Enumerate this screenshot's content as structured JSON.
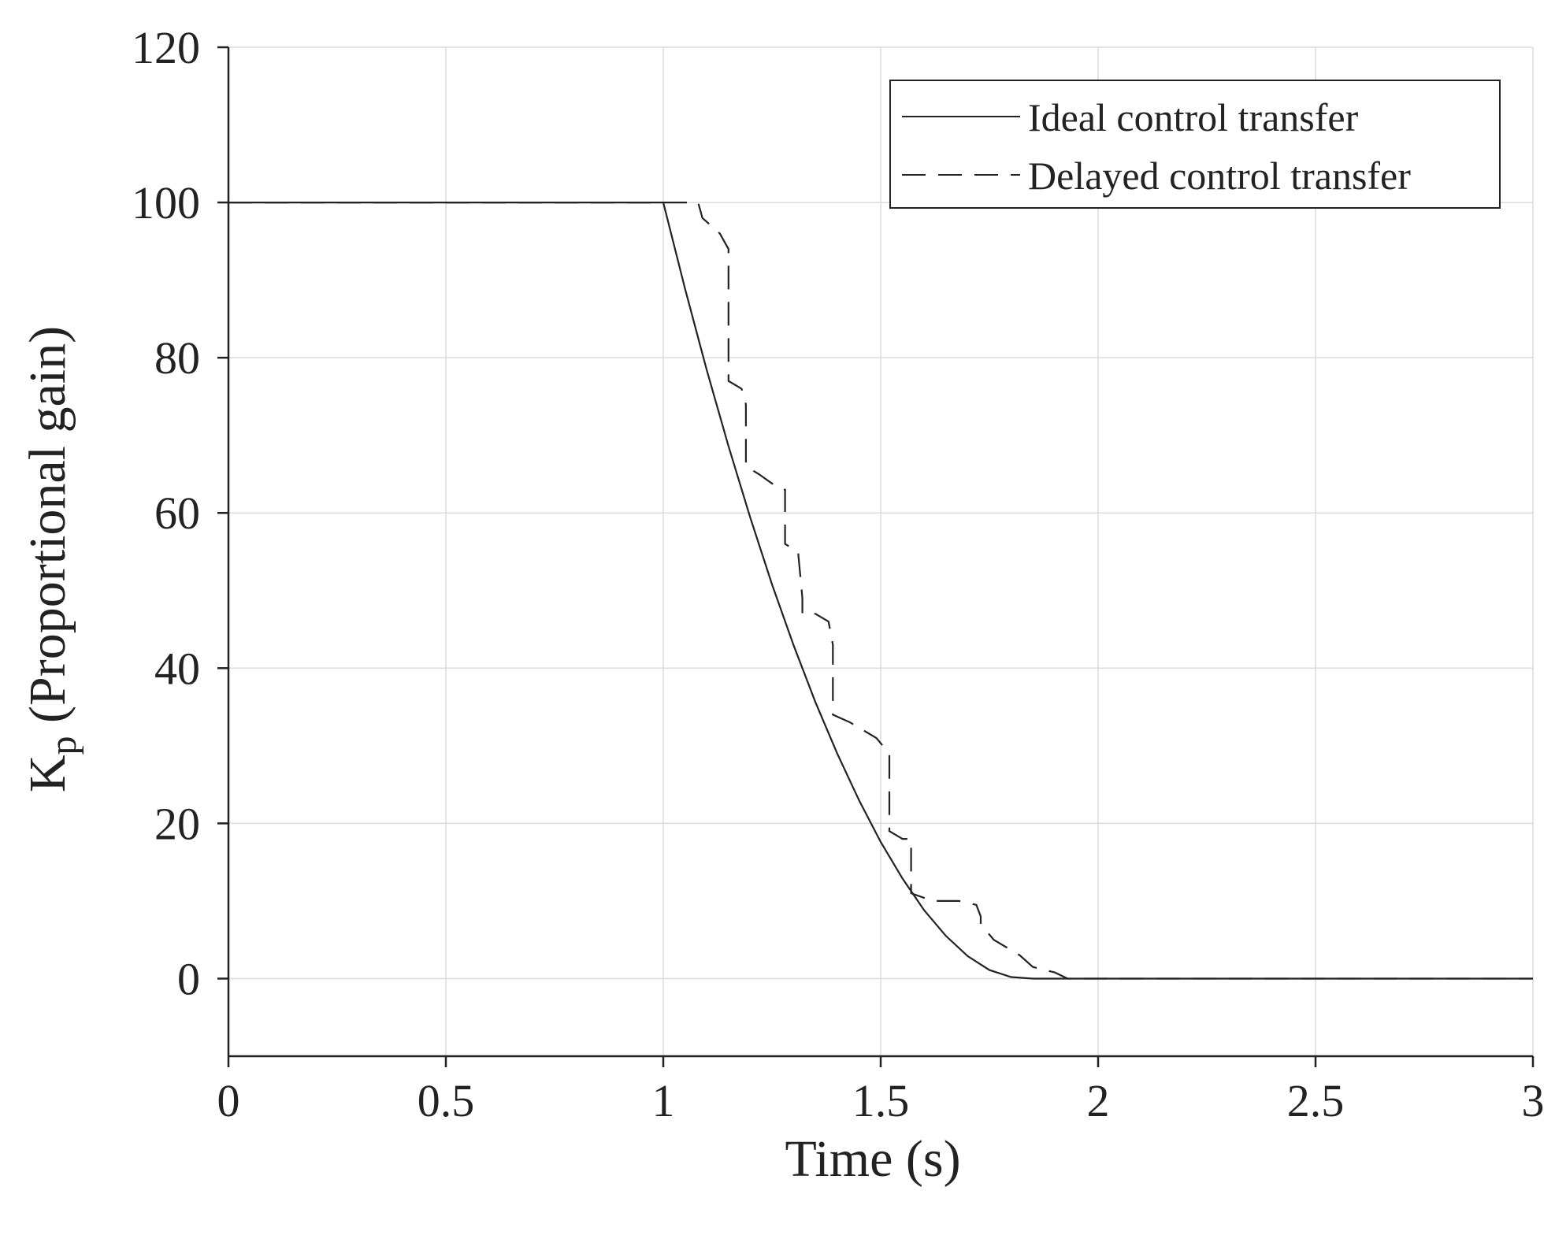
{
  "chart_data": {
    "type": "line",
    "title": "",
    "xlabel": "Time (s)",
    "ylabel_main": "K",
    "ylabel_subscript": "p",
    "ylabel_suffix": " (Proportional gain)",
    "xlim": [
      0,
      3
    ],
    "ylim": [
      -10,
      120
    ],
    "xticks": [
      0,
      0.5,
      1,
      1.5,
      2,
      2.5,
      3
    ],
    "xtick_labels": [
      "0",
      "0.5",
      "1",
      "1.5",
      "2",
      "2.5",
      "3"
    ],
    "yticks": [
      0,
      20,
      40,
      60,
      80,
      100,
      120
    ],
    "ytick_labels": [
      "0",
      "20",
      "40",
      "60",
      "80",
      "100",
      "120"
    ],
    "grid": true,
    "legend_position": "top-right",
    "series": [
      {
        "name": "Ideal control transfer",
        "style": "solid",
        "color": "#222222",
        "x": [
          0,
          1.0,
          1.05,
          1.1,
          1.15,
          1.2,
          1.25,
          1.3,
          1.35,
          1.4,
          1.45,
          1.5,
          1.55,
          1.6,
          1.65,
          1.7,
          1.75,
          1.8,
          1.85,
          1.88,
          3.0
        ],
        "y": [
          100,
          100,
          88.9,
          78.4,
          68.6,
          59.4,
          50.8,
          42.9,
          35.6,
          29.0,
          23.0,
          17.6,
          12.9,
          8.8,
          5.5,
          2.9,
          1.1,
          0.2,
          0.0,
          0.0,
          0.0
        ]
      },
      {
        "name": "Delayed control transfer",
        "style": "dashed",
        "color": "#222222",
        "x": [
          0,
          1.08,
          1.09,
          1.13,
          1.15,
          1.15,
          1.18,
          1.19,
          1.19,
          1.22,
          1.27,
          1.28,
          1.28,
          1.31,
          1.32,
          1.32,
          1.35,
          1.38,
          1.39,
          1.39,
          1.43,
          1.49,
          1.52,
          1.52,
          1.55,
          1.57,
          1.57,
          1.62,
          1.68,
          1.72,
          1.73,
          1.73,
          1.76,
          1.79,
          1.82,
          1.85,
          1.9,
          1.93,
          3.0
        ],
        "y": [
          100,
          100,
          98,
          96,
          94,
          77,
          76,
          74,
          66,
          65,
          63,
          63,
          56,
          55,
          49,
          47,
          47,
          46,
          43,
          34,
          33,
          31,
          29,
          19,
          18,
          18,
          11,
          10,
          10,
          9.5,
          8,
          7,
          5,
          4,
          3,
          1.5,
          0.8,
          0,
          0
        ]
      }
    ]
  }
}
